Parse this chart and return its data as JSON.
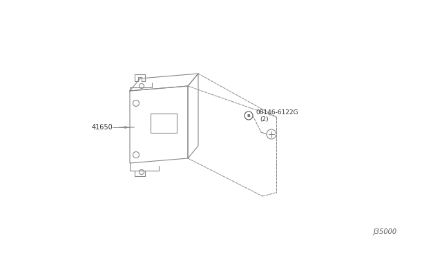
{
  "bg_color": "#ffffff",
  "line_color": "#888888",
  "dark_line": "#555555",
  "label_41650": "41650",
  "label_screw": "08146-6122G",
  "label_screw_qty": "(2)",
  "label_ref": "J35000",
  "fig_width": 6.4,
  "fig_height": 3.72,
  "dpi": 100
}
